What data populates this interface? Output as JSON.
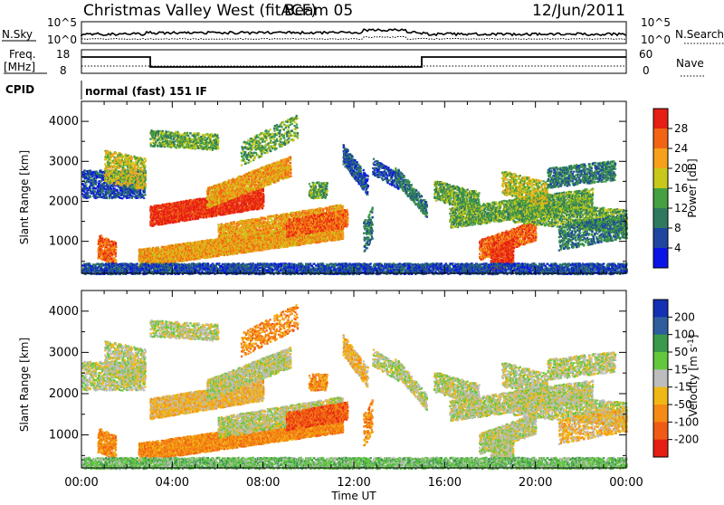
{
  "header": {
    "station": "Christmas Valley West (fitACF)",
    "beam": "Beam 05",
    "date": "12/Jun/2011"
  },
  "params": {
    "nsky_label": "N.Sky",
    "nsearch_label": "N.Search",
    "freq_label": "Freq.",
    "freq_unit": "[MHz]",
    "nave_label": "Nave",
    "cpid_label": "CPID",
    "cpid_value": "normal (fast) 151 IF",
    "nsky_ticks": [
      "10^5",
      "10^0"
    ],
    "freq_ticks": [
      "18",
      "8"
    ],
    "nave_ticks": [
      "60",
      "0"
    ]
  },
  "chart_data": [
    {
      "type": "heatmap",
      "ylabel": "Slant Range [km]",
      "xlabel": "Time UT",
      "x_ticks": [
        "00:00",
        "04:00",
        "08:00",
        "12:00",
        "16:00",
        "20:00",
        "00:00"
      ],
      "y_ticks": [
        1000,
        2000,
        3000,
        4000
      ],
      "ylim": [
        200,
        4500
      ],
      "colorbar": {
        "label": "Power [dB]",
        "ticks": [
          "4",
          "8",
          "12",
          "16",
          "20",
          "24",
          "28"
        ],
        "colors": [
          "#0a14e6",
          "#1e46a0",
          "#2f7a5e",
          "#44a040",
          "#c8c81a",
          "#f5a21a",
          "#f26414",
          "#e61e14"
        ]
      }
    },
    {
      "type": "heatmap",
      "ylabel": "Slant Range [km]",
      "xlabel": "Time UT",
      "x_ticks": [
        "00:00",
        "04:00",
        "08:00",
        "12:00",
        "16:00",
        "20:00",
        "00:00"
      ],
      "y_ticks": [
        1000,
        2000,
        3000,
        4000
      ],
      "ylim": [
        200,
        4500
      ],
      "colorbar": {
        "label": "Velocity [m s^-1]",
        "ticks": [
          "200",
          "100",
          "50",
          "15",
          "-15",
          "-50",
          "-100",
          "-200"
        ],
        "colors": [
          "#1430b4",
          "#2e5e9e",
          "#3a9a4a",
          "#62c83c",
          "#bdbdbd",
          "#f0b814",
          "#f58a14",
          "#f05a14",
          "#e61e14"
        ]
      }
    }
  ]
}
